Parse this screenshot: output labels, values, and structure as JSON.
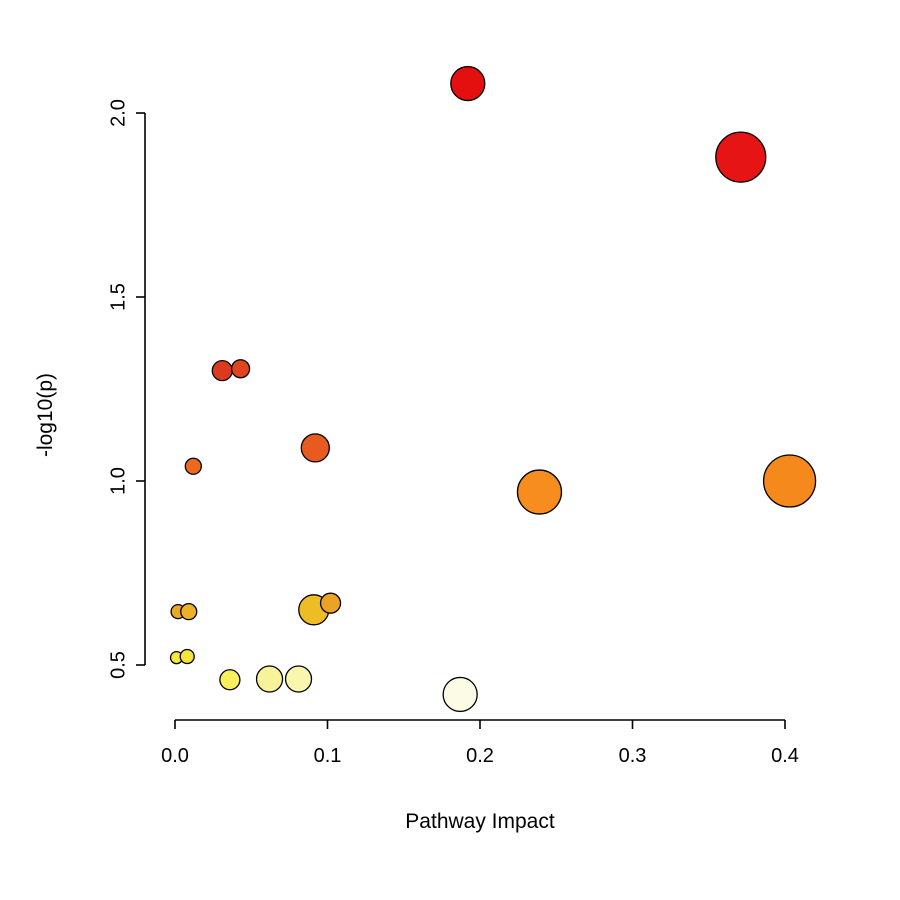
{
  "chart_data": {
    "type": "scatter",
    "title": "",
    "xlabel": "Pathway Impact",
    "ylabel": "-log10(p)",
    "xlim": [
      0,
      0.42
    ],
    "ylim": [
      0.4,
      2.1
    ],
    "grid": false,
    "legend": "none",
    "x_ticks": [
      0.0,
      0.1,
      0.2,
      0.3,
      0.4
    ],
    "x_tick_labels": [
      "0.0",
      "0.1",
      "0.2",
      "0.3",
      "0.4"
    ],
    "y_ticks": [
      0.5,
      1.0,
      1.5,
      2.0
    ],
    "y_tick_labels": [
      "0.5",
      "1.0",
      "1.5",
      "2.0"
    ],
    "size_encoding": "pathway impact (bubble radius, px)",
    "color_encoding": "p-value (pale yellow = high p, red = low p)",
    "points": [
      {
        "x": 0.192,
        "y": 2.08,
        "r": 17,
        "color": "#e40f0f"
      },
      {
        "x": 0.371,
        "y": 1.88,
        "r": 25,
        "color": "#e61414"
      },
      {
        "x": 0.031,
        "y": 1.3,
        "r": 10,
        "color": "#dc3a1e"
      },
      {
        "x": 0.043,
        "y": 1.305,
        "r": 9,
        "color": "#e0451f"
      },
      {
        "x": 0.012,
        "y": 1.04,
        "r": 8,
        "color": "#ec6a20"
      },
      {
        "x": 0.092,
        "y": 1.09,
        "r": 14,
        "color": "#e75b21"
      },
      {
        "x": 0.239,
        "y": 0.97,
        "r": 22,
        "color": "#f68d1e"
      },
      {
        "x": 0.403,
        "y": 1.0,
        "r": 26,
        "color": "#f6891c"
      },
      {
        "x": 0.002,
        "y": 0.645,
        "r": 7,
        "color": "#e9a825"
      },
      {
        "x": 0.009,
        "y": 0.645,
        "r": 8,
        "color": "#edb026"
      },
      {
        "x": 0.091,
        "y": 0.65,
        "r": 15,
        "color": "#eebd25"
      },
      {
        "x": 0.102,
        "y": 0.668,
        "r": 10,
        "color": "#eba325"
      },
      {
        "x": 0.001,
        "y": 0.52,
        "r": 6,
        "color": "#f3e83e"
      },
      {
        "x": 0.008,
        "y": 0.523,
        "r": 7,
        "color": "#f2e43a"
      },
      {
        "x": 0.036,
        "y": 0.46,
        "r": 10,
        "color": "#f7ef5c"
      },
      {
        "x": 0.062,
        "y": 0.462,
        "r": 13,
        "color": "#f8f39a"
      },
      {
        "x": 0.081,
        "y": 0.462,
        "r": 13,
        "color": "#f9f6ae"
      },
      {
        "x": 0.187,
        "y": 0.42,
        "r": 17,
        "color": "#fcfbe6"
      }
    ]
  }
}
